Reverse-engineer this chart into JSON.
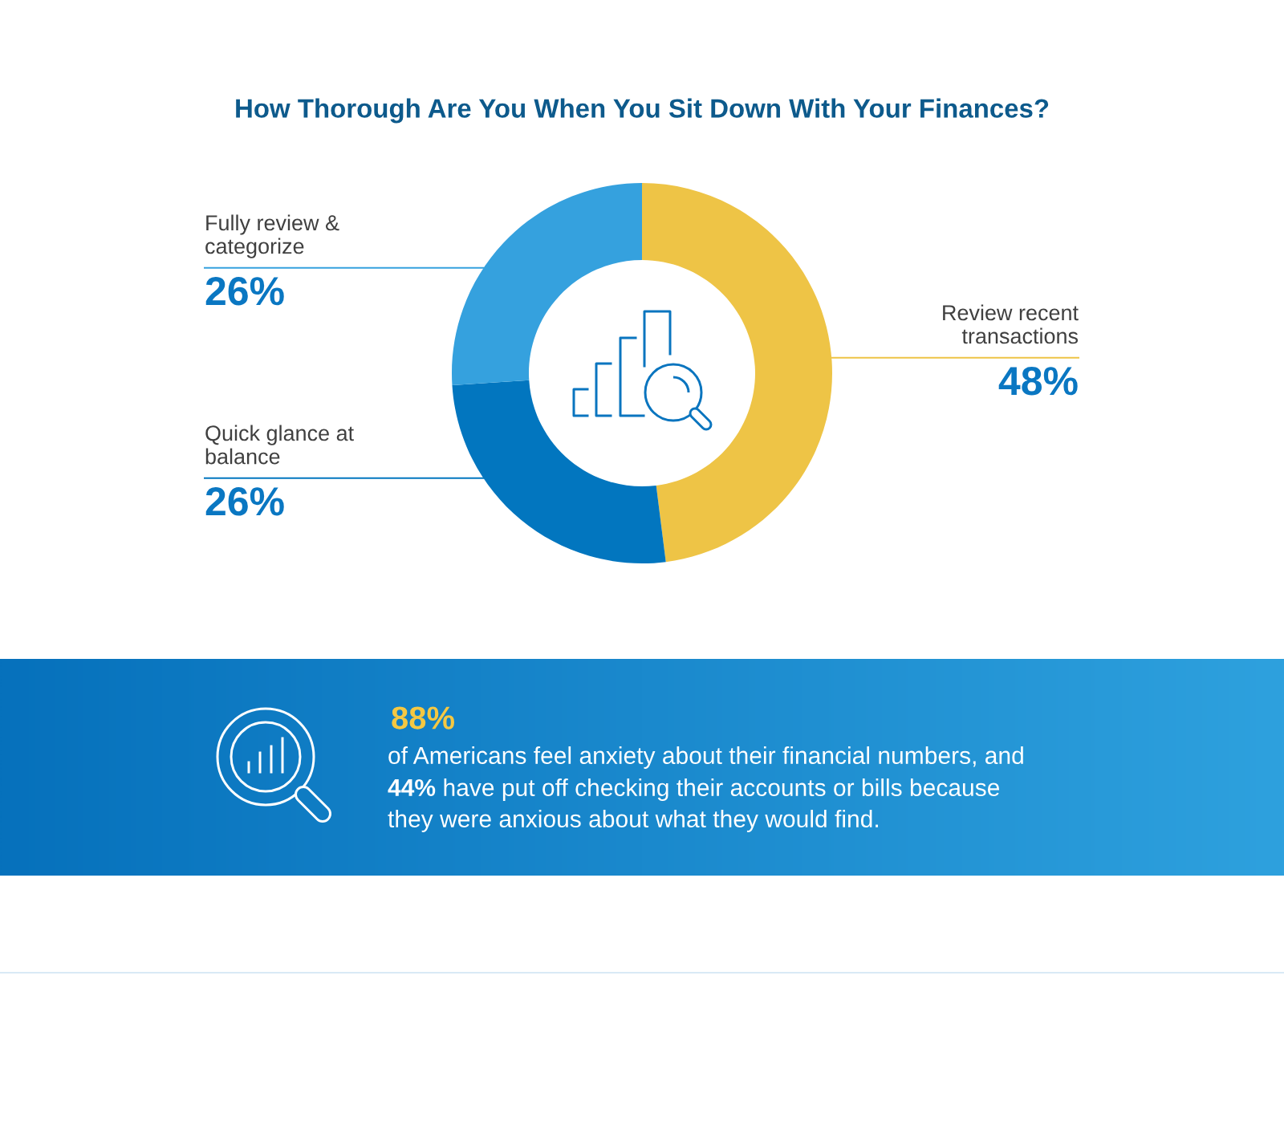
{
  "chart_data": {
    "type": "donut",
    "title": "How Thorough Are You When You Sit Down With Your Finances?",
    "categories": [
      "Review recent transactions",
      "Quick glance at balance",
      "Fully review & categorize"
    ],
    "values": [
      48,
      26,
      26
    ],
    "colors": [
      "#eec446",
      "#0276bf",
      "#35a1de"
    ],
    "value_labels": [
      "48%",
      "26%",
      "26%"
    ],
    "annotations": [
      "88%",
      "of Americans feel anxiety about their financial numbers, and",
      "44%",
      "have put off checking their accounts or bills because",
      "they were anxious about what they would find."
    ]
  }
}
